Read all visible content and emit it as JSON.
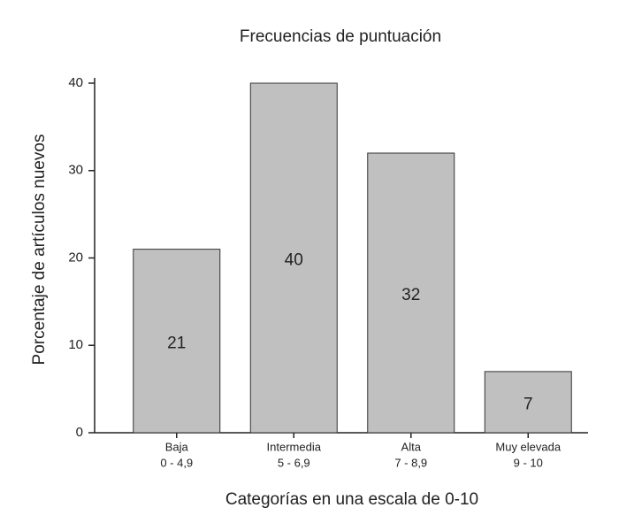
{
  "chart_data": {
    "type": "bar",
    "title": "Frecuencias de puntuación",
    "x_label": "Categorías en una escala de 0-10",
    "y_label": "Porcentaje de artículos nuevos",
    "categories": [
      "Baja",
      "Intermedia",
      "Alta",
      "Muy elevada"
    ],
    "category_ranges": [
      "0 - 4,9",
      "5 - 6,9",
      "7 - 8,9",
      "9 - 10"
    ],
    "values": [
      21,
      40,
      32,
      7
    ],
    "color": "#c0c0c0",
    "ylim": [
      0,
      40
    ],
    "yticks": [
      0,
      10,
      20,
      30,
      40
    ],
    "grid": false
  }
}
